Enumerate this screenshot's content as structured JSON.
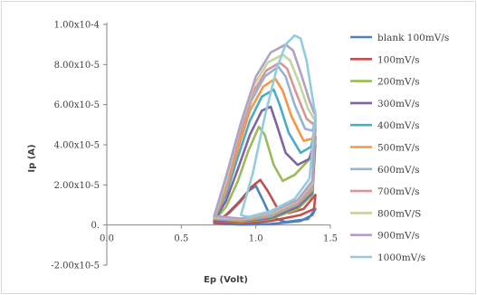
{
  "chart_data": {
    "type": "line",
    "title": "",
    "xlabel": "Ep (Volt)",
    "ylabel": "Ip (A)",
    "xlim": [
      0,
      1.5
    ],
    "ylim": [
      -2e-05,
      0.0001
    ],
    "x_tick_labels": [
      "0.0",
      "0.5",
      "1.0",
      "1.5"
    ],
    "y_tick_labels": [
      "-2.00x10-5",
      "0.",
      "2.00x10-5",
      "4.00x10-5",
      "6.00x10-5",
      "8.00x10-5",
      "1.00x10-4"
    ],
    "x_ticks": [
      0,
      0.5,
      1.0,
      1.5
    ],
    "y_ticks": [
      -2e-05,
      0,
      2e-05,
      4e-05,
      6e-05,
      8e-05,
      0.0001
    ],
    "legend_position": "right",
    "series": [
      {
        "name": "blank 100mV/s",
        "color": "#4f81bd",
        "x": [
          0.72,
          0.8,
          0.88,
          0.95,
          1.0,
          1.05,
          1.1,
          1.2,
          1.35,
          1.4,
          1.38,
          1.3,
          1.1,
          0.9,
          0.72
        ],
        "y": [
          1e-06,
          5e-06,
          1.1e-05,
          1.7e-05,
          1.95e-05,
          1.2e-05,
          4e-06,
          1.5e-06,
          3e-06,
          8e-06,
          5e-06,
          2e-06,
          5e-07,
          2e-07,
          1e-06
        ]
      },
      {
        "name": "100mV/s",
        "color": "#c0504d",
        "x": [
          0.72,
          0.82,
          0.9,
          0.97,
          1.03,
          1.08,
          1.14,
          1.22,
          1.32,
          1.4,
          1.39,
          1.3,
          1.1,
          0.9,
          0.72
        ],
        "y": [
          1e-06,
          6e-06,
          1.2e-05,
          1.9e-05,
          2.25e-05,
          1.7e-05,
          9e-06,
          6e-06,
          8e-06,
          1.5e-05,
          8e-06,
          5e-06,
          2e-06,
          8e-07,
          1e-06
        ]
      },
      {
        "name": "200mV/s",
        "color": "#9bbb59",
        "x": [
          0.72,
          0.8,
          0.88,
          0.95,
          1.02,
          1.06,
          1.12,
          1.18,
          1.26,
          1.35,
          1.4,
          1.38,
          1.28,
          1.1,
          0.9,
          0.72
        ],
        "y": [
          2e-06,
          9e-06,
          2.2e-05,
          3.7e-05,
          4.9e-05,
          4.5e-05,
          3e-05,
          2.2e-05,
          2.5e-05,
          3.2e-05,
          4e-05,
          1.5e-05,
          8e-06,
          3e-06,
          1.5e-06,
          2e-06
        ]
      },
      {
        "name": "300mV/s",
        "color": "#8064a2",
        "x": [
          0.72,
          0.8,
          0.88,
          0.96,
          1.04,
          1.1,
          1.14,
          1.2,
          1.28,
          1.36,
          1.4,
          1.38,
          1.28,
          1.1,
          0.9,
          0.72
        ],
        "y": [
          2e-06,
          1.2e-05,
          2.8e-05,
          4.5e-05,
          5.7e-05,
          5.9e-05,
          5e-05,
          3.6e-05,
          3e-05,
          3.3e-05,
          4.4e-05,
          1.6e-05,
          9e-06,
          3.5e-06,
          1.8e-06,
          2e-06
        ]
      },
      {
        "name": "400mV/s",
        "color": "#4bacc6",
        "x": [
          0.72,
          0.8,
          0.88,
          0.96,
          1.04,
          1.12,
          1.16,
          1.22,
          1.3,
          1.37,
          1.4,
          1.38,
          1.28,
          1.1,
          0.9,
          0.72
        ],
        "y": [
          3e-06,
          1.5e-05,
          3.4e-05,
          5.2e-05,
          6.4e-05,
          6.75e-05,
          6e-05,
          4.6e-05,
          3.6e-05,
          3.9e-05,
          4.8e-05,
          1.7e-05,
          1e-05,
          4e-06,
          2e-06,
          3e-06
        ]
      },
      {
        "name": "500mV/s",
        "color": "#f79646",
        "x": [
          0.72,
          0.8,
          0.88,
          0.96,
          1.05,
          1.13,
          1.18,
          1.24,
          1.32,
          1.38,
          1.4,
          1.38,
          1.28,
          1.1,
          0.9,
          0.72
        ],
        "y": [
          3e-06,
          1.7e-05,
          3.8e-05,
          5.7e-05,
          6.9e-05,
          7.3e-05,
          6.7e-05,
          5.4e-05,
          4.2e-05,
          4.3e-05,
          5e-05,
          1.8e-05,
          1.05e-05,
          4.5e-06,
          2.2e-06,
          3e-06
        ]
      },
      {
        "name": "600mV/s",
        "color": "#95b3d7",
        "x": [
          0.72,
          0.8,
          0.88,
          0.97,
          1.06,
          1.15,
          1.2,
          1.26,
          1.33,
          1.38,
          1.4,
          1.38,
          1.28,
          1.1,
          0.9,
          0.72
        ],
        "y": [
          3.5e-06,
          1.9e-05,
          4.2e-05,
          6.2e-05,
          7.4e-05,
          7.9e-05,
          7.4e-05,
          6e-05,
          4.8e-05,
          4.7e-05,
          5.2e-05,
          1.9e-05,
          1.1e-05,
          5e-06,
          2.5e-06,
          3.5e-06
        ]
      },
      {
        "name": "700mV/s",
        "color": "#d99694",
        "x": [
          0.72,
          0.8,
          0.89,
          0.98,
          1.07,
          1.16,
          1.21,
          1.27,
          1.34,
          1.39,
          1.4,
          1.38,
          1.28,
          1.1,
          0.9,
          0.72
        ],
        "y": [
          4e-06,
          2e-05,
          4.5e-05,
          6.6e-05,
          7.7e-05,
          8.1e-05,
          7.8e-05,
          6.6e-05,
          5.3e-05,
          5e-05,
          5.3e-05,
          2e-05,
          1.15e-05,
          5.5e-06,
          2.7e-06,
          4e-06
        ]
      },
      {
        "name": "800mV/S",
        "color": "#c3d69b",
        "x": [
          0.72,
          0.8,
          0.89,
          0.99,
          1.08,
          1.18,
          1.23,
          1.29,
          1.35,
          1.39,
          1.4,
          1.38,
          1.28,
          1.1,
          0.9,
          0.72
        ],
        "y": [
          4e-06,
          2.2e-05,
          4.8e-05,
          7e-05,
          8.1e-05,
          8.5e-05,
          8.2e-05,
          7.1e-05,
          5.8e-05,
          5.3e-05,
          5.4e-05,
          2.1e-05,
          1.2e-05,
          6e-06,
          3e-06,
          4e-06
        ]
      },
      {
        "name": "900mV/s",
        "color": "#b2a1c7",
        "x": [
          0.72,
          0.8,
          0.9,
          1.0,
          1.1,
          1.2,
          1.25,
          1.3,
          1.36,
          1.39,
          1.4,
          1.38,
          1.28,
          1.1,
          0.9,
          0.72
        ],
        "y": [
          4.5e-06,
          2.4e-05,
          5.1e-05,
          7.4e-05,
          8.6e-05,
          9e-05,
          8.7e-05,
          7.6e-05,
          6.2e-05,
          5.6e-05,
          5.5e-05,
          2.2e-05,
          1.25e-05,
          6.5e-06,
          3.2e-06,
          4.5e-06
        ]
      },
      {
        "name": "1000mV/s",
        "color": "#93cddd",
        "x": [
          0.9,
          0.98,
          1.06,
          1.14,
          1.2,
          1.26,
          1.3,
          1.34,
          1.37,
          1.39,
          1.4,
          1.36,
          1.26,
          1.1,
          0.95,
          0.9
        ],
        "y": [
          5e-06,
          2.6e-05,
          5.4e-05,
          7.8e-05,
          9e-05,
          9.45e-05,
          9.3e-05,
          8.2e-05,
          6.8e-05,
          5.9e-05,
          5.6e-05,
          2.3e-05,
          1.3e-05,
          7e-06,
          4e-06,
          5e-06
        ]
      }
    ]
  }
}
